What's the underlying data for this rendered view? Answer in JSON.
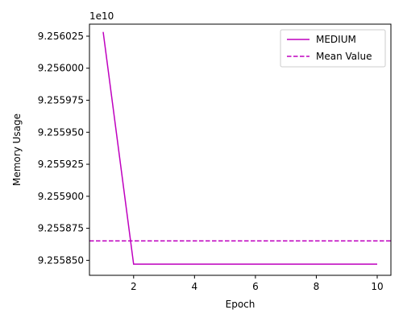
{
  "chart_data": {
    "type": "line",
    "title": "",
    "xlabel": "Epoch",
    "ylabel": "Memory Usage",
    "offset_label": "1e10",
    "xlim": [
      0.55,
      10.45
    ],
    "ylim": [
      92558383000.0,
      92560344000.0
    ],
    "x_ticks": [
      2,
      4,
      6,
      8,
      10
    ],
    "x_tick_labels": [
      "2",
      "4",
      "6",
      "8",
      "10"
    ],
    "y_ticks": [
      92558500000.0,
      92558750000.0,
      92559000000.0,
      92559250000.0,
      92559500000.0,
      92559750000.0,
      92560000000.0,
      92560250000.0
    ],
    "y_tick_labels": [
      "9.255850",
      "9.255875",
      "9.255900",
      "9.255925",
      "9.255950",
      "9.255975",
      "9.256000",
      "9.256025"
    ],
    "grid": false,
    "legend_position": "top-right",
    "series": [
      {
        "name": "MEDIUM",
        "style": "solid",
        "color": "#bf00bf",
        "x": [
          1,
          2,
          3,
          4,
          5,
          6,
          7,
          8,
          9,
          10
        ],
        "y": [
          92560283000.0,
          92558470000.0,
          92558470000.0,
          92558470000.0,
          92558470000.0,
          92558470000.0,
          92558470000.0,
          92558470000.0,
          92558470000.0,
          92558470000.0
        ]
      },
      {
        "name": "Mean Value",
        "style": "dashed",
        "color": "#bf00bf",
        "y_constant": 92558652000.0
      }
    ]
  }
}
